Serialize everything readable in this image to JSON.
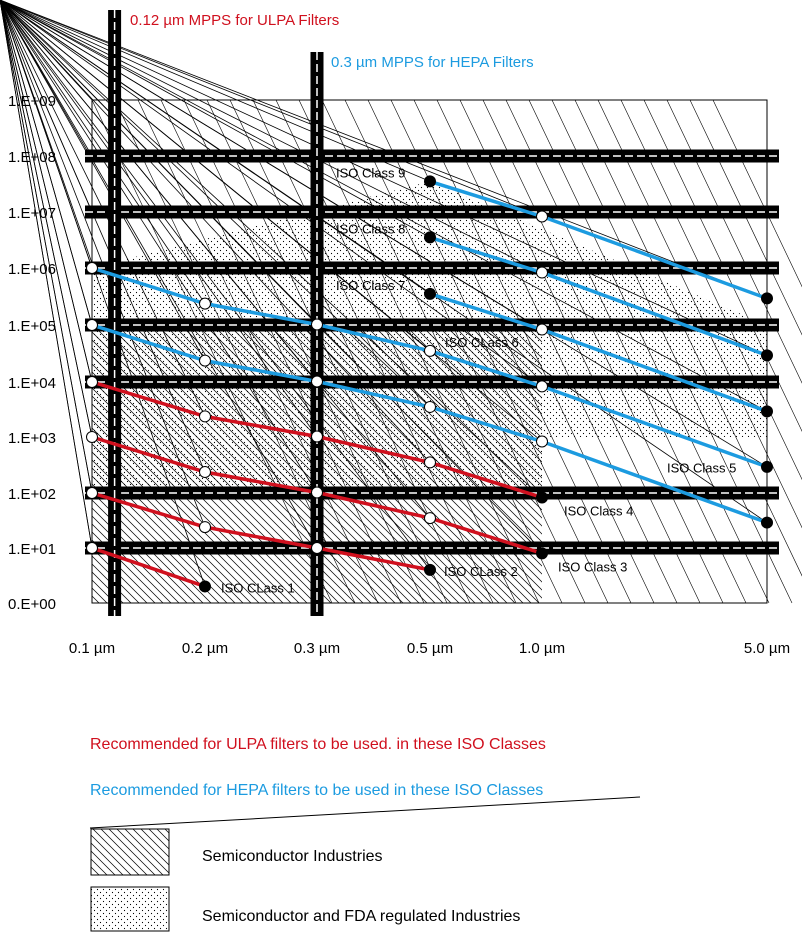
{
  "chart_data": {
    "type": "line",
    "title": "",
    "xlabel": "",
    "ylabel": "",
    "x_ticks": [
      "0.1 µm",
      "0.2 µm",
      "0.3 µm",
      "0.5 µm",
      "1.0 µm",
      "5.0 µm"
    ],
    "x_values": [
      0.1,
      0.2,
      0.3,
      0.5,
      1.0,
      5.0
    ],
    "y_ticks": [
      "0.E+00",
      "1.E+01",
      "1.E+02",
      "1.E+03",
      "1.E+04",
      "1.E+05",
      "1.E+06",
      "1.E+07",
      "1.E+08",
      "1.E+09"
    ],
    "y_scale": "log",
    "ylim": [
      1,
      1000000000
    ],
    "colors": {
      "ulpa": "#d0101e",
      "hepa": "#1c9be0",
      "frame": "#000000"
    },
    "mpps_lines": [
      {
        "x": 0.12,
        "label": "0.12 µm MPPS for ULPA Filters",
        "color_key": "ulpa"
      },
      {
        "x": 0.3,
        "label": "0.3 µm MPPS for HEPA Filters",
        "color_key": "hepa"
      }
    ],
    "series": [
      {
        "name": "ISO CLass 1",
        "recommended": "ulpa",
        "points": [
          [
            0.1,
            10
          ],
          [
            0.2,
            2
          ]
        ]
      },
      {
        "name": "ISO CLass 2",
        "recommended": "ulpa",
        "points": [
          [
            0.1,
            100
          ],
          [
            0.2,
            24
          ],
          [
            0.3,
            10
          ],
          [
            0.5,
            4
          ]
        ]
      },
      {
        "name": "ISO Class 3",
        "recommended": "ulpa",
        "points": [
          [
            0.1,
            1000
          ],
          [
            0.2,
            237
          ],
          [
            0.3,
            102
          ],
          [
            0.5,
            35
          ],
          [
            1.0,
            8
          ]
        ]
      },
      {
        "name": "ISO Class 4",
        "recommended": "ulpa",
        "points": [
          [
            0.1,
            10000
          ],
          [
            0.2,
            2370
          ],
          [
            0.3,
            1020
          ],
          [
            0.5,
            352
          ],
          [
            1.0,
            83
          ]
        ]
      },
      {
        "name": "ISO Class 5",
        "recommended": "hepa",
        "points": [
          [
            0.1,
            100000
          ],
          [
            0.2,
            23700
          ],
          [
            0.3,
            10200
          ],
          [
            0.5,
            3520
          ],
          [
            1.0,
            832
          ],
          [
            5.0,
            29
          ]
        ]
      },
      {
        "name": "ISO CLass 6",
        "recommended": "hepa",
        "points": [
          [
            0.1,
            1000000
          ],
          [
            0.2,
            237000
          ],
          [
            0.3,
            102000
          ],
          [
            0.5,
            35200
          ],
          [
            1.0,
            8320
          ],
          [
            5.0,
            293
          ]
        ]
      },
      {
        "name": "ISO Class 7",
        "recommended": "hepa",
        "points": [
          [
            0.5,
            352000
          ],
          [
            1.0,
            83200
          ],
          [
            5.0,
            2930
          ]
        ]
      },
      {
        "name": "ISO Class 8",
        "recommended": "hepa",
        "points": [
          [
            0.5,
            3520000
          ],
          [
            1.0,
            832000
          ],
          [
            5.0,
            29300
          ]
        ]
      },
      {
        "name": "ISO Class 9",
        "recommended": "hepa",
        "points": [
          [
            0.5,
            35200000
          ],
          [
            1.0,
            8320000
          ],
          [
            5.0,
            293000
          ]
        ]
      }
    ],
    "gridlines": {
      "heavy_y": [
        10,
        100,
        10000,
        100000,
        1000000,
        10000000,
        100000000
      ]
    },
    "industry_regions": [
      {
        "pattern": "hatch",
        "legend_key": "semiconductor",
        "x_range": [
          0.1,
          1.0
        ],
        "y_range": [
          1,
          100000
        ]
      },
      {
        "pattern": "dots",
        "legend_key": "semi_fda",
        "x_range": [
          0.1,
          5.0
        ],
        "y_range": [
          100,
          100000000
        ]
      }
    ],
    "legend": {
      "ulpa_text": "Recommended for ULPA filters to be used. in these ISO Classes",
      "hepa_text": "Recommended for HEPA filters to be used in these ISO Classes",
      "items": [
        {
          "key": "semiconductor",
          "pattern": "hatch",
          "label": "Semiconductor Industries"
        },
        {
          "key": "semi_fda",
          "pattern": "dots",
          "label": "Semiconductor and FDA regulated Industries"
        }
      ]
    }
  }
}
